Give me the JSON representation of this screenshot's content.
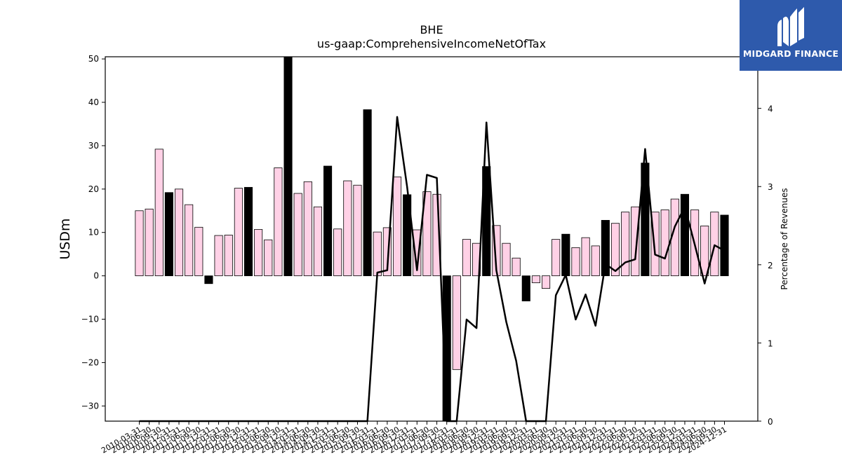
{
  "chart_data": {
    "type": "bar",
    "title": "BHE",
    "subtitle": "us-gaap:ComprehensiveIncomeNetOfTax",
    "ylabel": "USDm",
    "y2label": "Percentage of Revenues",
    "ylim": [
      -33.5,
      50.5
    ],
    "y2lim": [
      0,
      4.66
    ],
    "yticks": [
      -30,
      -20,
      -10,
      0,
      10,
      20,
      30,
      40,
      50
    ],
    "y2ticks": [
      0,
      1,
      2,
      3,
      4
    ],
    "categories": [
      "2010-03-31",
      "2010-06-30",
      "2010-09-30",
      "2010-12-31",
      "2011-03-31",
      "2011-06-30",
      "2011-09-30",
      "2011-12-31",
      "2012-03-31",
      "2012-06-30",
      "2012-09-30",
      "2012-12-31",
      "2013-03-31",
      "2013-06-30",
      "2013-09-30",
      "2013-12-31",
      "2014-03-31",
      "2014-06-30",
      "2014-09-30",
      "2014-12-31",
      "2015-03-31",
      "2015-06-30",
      "2015-09-30",
      "2015-12-31",
      "2016-03-31",
      "2016-06-30",
      "2016-09-30",
      "2016-12-31",
      "2017-03-31",
      "2017-06-30",
      "2017-09-30",
      "2017-12-31",
      "2018-03-31",
      "2018-06-30",
      "2018-09-30",
      "2018-12-31",
      "2019-03-31",
      "2019-06-30",
      "2019-09-30",
      "2019-12-31",
      "2020-03-31",
      "2020-06-30",
      "2020-09-30",
      "2020-12-31",
      "2021-03-31",
      "2021-06-30",
      "2021-09-30",
      "2021-12-31",
      "2022-03-31",
      "2022-06-30",
      "2022-09-30",
      "2022-12-31",
      "2023-03-31",
      "2023-06-30",
      "2023-09-30",
      "2023-12-31",
      "2024-03-31",
      "2024-06-30",
      "2024-09-30",
      "2024-12-31"
    ],
    "xtick_labels": [
      "2010-03-31",
      "2010-06-30",
      "2010-09-30",
      "2010-12-31",
      "2011-03-31",
      "2011-06-30",
      "2011-09-30",
      "2011-12-31",
      "2012-03-31",
      "2012-06-30",
      "2012-09-30",
      "2012-12-31",
      "2013-03-31",
      "2013-06-30",
      "2013-09-30",
      "2013-12-31",
      "2014-03-31",
      "2014-06-30",
      "2014-09-30",
      "2014-12-31",
      "2015-03-31",
      "2015-06-30",
      "2015-09-30",
      "2015-12-31",
      "2016-03-31",
      "2016-06-30",
      "2016-09-30",
      "2016-12-31",
      "2017-03-31",
      "2017-06-30",
      "2017-09-30",
      "2017-12-31",
      "2018-03-31",
      "2018-06-30",
      "2018-09-30",
      "2018-12-31",
      "2019-03-31",
      "2019-06-30",
      "2019-09-30",
      "2019-12-31",
      "2020-03-31",
      "2020-06-30",
      "2020-09-30",
      "2020-12-31",
      "2021-03-31",
      "2021-06-30",
      "2021-09-30",
      "2021-12-31",
      "2022-03-31",
      "2022-06-30",
      "2022-09-30",
      "2022-12-31",
      "2023-03-31",
      "2023-06-30",
      "2023-09-30",
      "2023-12-31",
      "2024-03-31",
      "2024-06-30",
      "2024-09-30",
      "2024-12-31"
    ],
    "values": [
      15.0,
      15.4,
      29.2,
      19.2,
      20.0,
      16.4,
      11.2,
      -1.8,
      9.3,
      9.4,
      20.2,
      20.4,
      10.7,
      8.3,
      24.9,
      50.5,
      19.0,
      21.7,
      15.9,
      25.3,
      10.8,
      21.9,
      20.9,
      38.3,
      10.1,
      11.1,
      22.8,
      18.7,
      10.6,
      19.4,
      18.8,
      -33.5,
      -21.6,
      8.4,
      7.5,
      25.2,
      11.6,
      7.5,
      4.1,
      -5.8,
      -1.6,
      -2.9,
      8.4,
      9.6,
      6.5,
      8.8,
      6.9,
      12.8,
      12.1,
      14.7,
      15.9,
      26.0,
      14.7,
      15.2,
      17.7,
      18.8,
      15.2,
      11.5,
      14.7,
      14.0
    ],
    "highlight": [
      false,
      false,
      false,
      true,
      false,
      false,
      false,
      true,
      false,
      false,
      false,
      true,
      false,
      false,
      false,
      true,
      false,
      false,
      false,
      true,
      false,
      false,
      false,
      true,
      false,
      false,
      false,
      true,
      false,
      false,
      false,
      true,
      false,
      false,
      false,
      true,
      false,
      false,
      false,
      true,
      false,
      false,
      false,
      true,
      false,
      false,
      false,
      true,
      false,
      false,
      false,
      true,
      false,
      false,
      false,
      true,
      false,
      false,
      false,
      true
    ],
    "line_series": {
      "axis": "right",
      "values": [
        0,
        0,
        0,
        0,
        0,
        0,
        0,
        0,
        0,
        0,
        0,
        0,
        0,
        0,
        0,
        0,
        0,
        0,
        0,
        0,
        0,
        0,
        0,
        0,
        1.9,
        1.93,
        3.89,
        3.0,
        1.93,
        3.15,
        3.11,
        0,
        0,
        1.3,
        1.19,
        3.82,
        1.93,
        1.27,
        0.77,
        0,
        0,
        0,
        1.61,
        1.87,
        1.3,
        1.62,
        1.22,
        2.01,
        1.92,
        2.03,
        2.07,
        3.48,
        2.13,
        2.08,
        2.49,
        2.74,
        2.26,
        1.76,
        2.25,
        2.18
      ]
    },
    "colors": {
      "bar": "#ffd1e6",
      "bar_highlight": "#000000",
      "bar_edge": "#000000",
      "line": "#000000"
    },
    "grid": false
  },
  "logo": {
    "text": "MIDGARD FINANCE",
    "bg": "#2e5aac"
  }
}
